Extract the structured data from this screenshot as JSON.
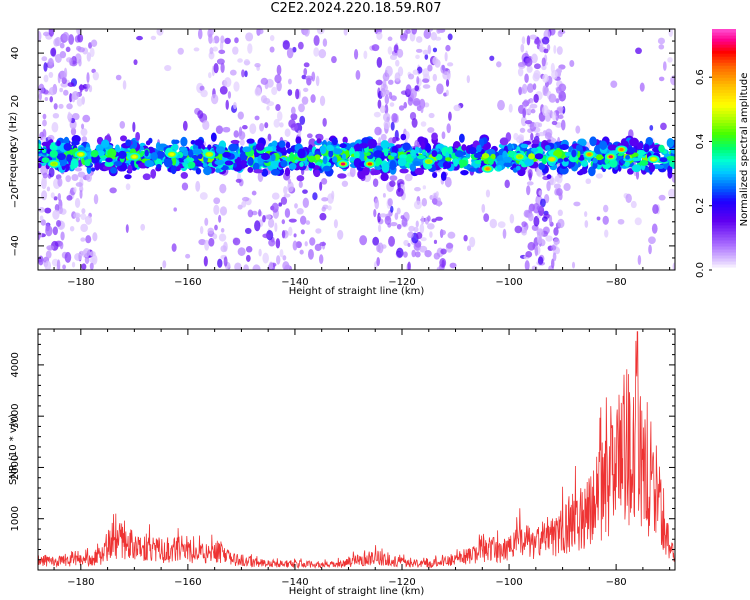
{
  "figure_title": "C2E2.2024.220.18.59.R07",
  "chart_data": [
    {
      "type": "heatmap",
      "title": "C2E2.2024.220.18.59.R07",
      "xlabel": "Height of straight line (km)",
      "ylabel": "Frequency (Hz)",
      "xlim": [
        -188,
        -69
      ],
      "ylim": [
        -50,
        50
      ],
      "xticks": [
        -180,
        -160,
        -140,
        -120,
        -100,
        -80
      ],
      "yticks": [
        -40,
        -20,
        0,
        20,
        40
      ],
      "description_band_center_hz": -3,
      "band_center_hz": -3,
      "band_halfwidth_hz": 8,
      "colorbar": {
        "label": "Normalized spectral amplitude",
        "range": [
          0,
          0.75
        ],
        "ticks": [
          0.0,
          0.2,
          0.4,
          0.6
        ]
      },
      "hotspots": [
        {
          "x": -131,
          "y": -6,
          "value": 0.7
        },
        {
          "x": -126,
          "y": -6,
          "value": 0.65
        },
        {
          "x": -104,
          "y": -8,
          "value": 0.6
        },
        {
          "x": -92,
          "y": -4,
          "value": 0.55
        },
        {
          "x": -85,
          "y": -2,
          "value": 0.6
        },
        {
          "x": -81,
          "y": -3,
          "value": 0.7
        },
        {
          "x": -79,
          "y": 0,
          "value": 0.62
        },
        {
          "x": -185,
          "y": -6,
          "value": 0.45
        },
        {
          "x": -180,
          "y": -2,
          "value": 0.5
        },
        {
          "x": -170,
          "y": -3,
          "value": 0.5
        },
        {
          "x": -163,
          "y": -2,
          "value": 0.5
        },
        {
          "x": -156,
          "y": -2,
          "value": 0.48
        },
        {
          "x": -115,
          "y": -5,
          "value": 0.45
        },
        {
          "x": -98,
          "y": -3,
          "value": 0.45
        },
        {
          "x": -73,
          "y": -4,
          "value": 0.5
        }
      ],
      "noise_columns_km": [
        [
          -188,
          -177
        ],
        [
          -158,
          -134
        ],
        [
          -125,
          -111
        ],
        [
          -98,
          -90
        ]
      ]
    },
    {
      "type": "line",
      "xlabel": "Height of straight line (km)",
      "ylabel": "SNR (10 * v/v)",
      "xlim": [
        -188,
        -69
      ],
      "ylim": [
        0,
        4700
      ],
      "xticks": [
        -180,
        -160,
        -140,
        -120,
        -100,
        -80
      ],
      "yticks": [
        1000,
        2000,
        3000,
        4000
      ],
      "color": "#ee3333",
      "series": [
        {
          "name": "SNR",
          "x": [
            -188,
            -185,
            -182,
            -179,
            -176,
            -173,
            -170,
            -167,
            -164,
            -161,
            -158,
            -155,
            -152,
            -149,
            -146,
            -143,
            -140,
            -137,
            -134,
            -131,
            -128,
            -125,
            -122,
            -119,
            -116,
            -113,
            -110,
            -107,
            -104,
            -101,
            -98,
            -95,
            -92,
            -89,
            -87,
            -85,
            -83,
            -81,
            -80,
            -79,
            -78,
            -77,
            -76,
            -75,
            -74,
            -73,
            -72,
            -71,
            -70,
            -69
          ],
          "values": [
            280,
            260,
            250,
            300,
            420,
            900,
            700,
            650,
            520,
            620,
            460,
            560,
            320,
            260,
            200,
            180,
            170,
            160,
            150,
            170,
            300,
            380,
            260,
            200,
            170,
            220,
            320,
            420,
            620,
            520,
            850,
            750,
            900,
            1300,
            1500,
            1800,
            2200,
            2600,
            3000,
            3200,
            3800,
            3000,
            4600,
            2600,
            2300,
            3000,
            1900,
            1400,
            600,
            350
          ],
          "peak": {
            "x": -76,
            "value": 4650
          }
        }
      ]
    }
  ]
}
